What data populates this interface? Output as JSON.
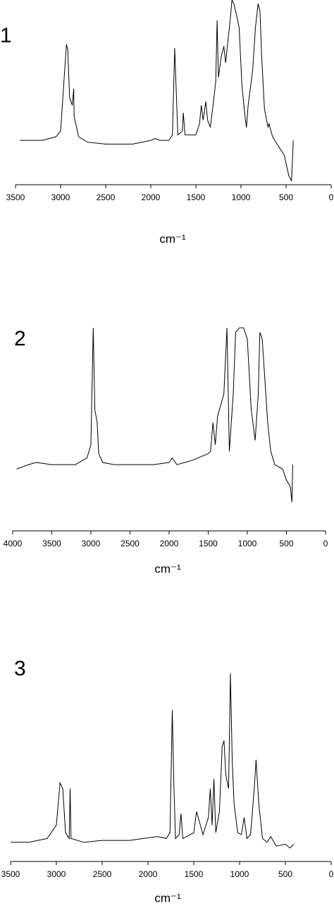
{
  "chart_data": [
    {
      "type": "line",
      "title": "1",
      "xlabel": "cm⁻¹",
      "color": "#000000",
      "xlim": [
        3500,
        0
      ],
      "xticks": [
        3500,
        3000,
        2500,
        2000,
        1500,
        1000,
        500,
        0
      ],
      "ylim": [
        0,
        100
      ],
      "x": [
        3450,
        3400,
        3200,
        3050,
        3000,
        2960,
        2935,
        2920,
        2900,
        2870,
        2855,
        2850,
        2800,
        2700,
        2500,
        2200,
        2000,
        1950,
        1900,
        1800,
        1760,
        1735,
        1720,
        1700,
        1650,
        1640,
        1620,
        1500,
        1460,
        1440,
        1420,
        1390,
        1370,
        1340,
        1300,
        1280,
        1265,
        1250,
        1220,
        1190,
        1170,
        1120,
        1100,
        1080,
        1050,
        1020,
        990,
        960,
        940,
        920,
        870,
        840,
        810,
        790,
        770,
        740,
        700,
        690,
        650,
        600,
        520,
        470,
        440,
        420
      ],
      "values": [
        24,
        24,
        24,
        26,
        29,
        58,
        76,
        73,
        47,
        43,
        52,
        37,
        26,
        23,
        22,
        22,
        24,
        25,
        24,
        24,
        27,
        74,
        54,
        27,
        29,
        39,
        27,
        27,
        33,
        43,
        35,
        45,
        35,
        31,
        47,
        56,
        89,
        58,
        69,
        75,
        66,
        89,
        100,
        98,
        92,
        85,
        54,
        39,
        31,
        43,
        62,
        85,
        98,
        94,
        69,
        41,
        31,
        33,
        26,
        22,
        16,
        5,
        2,
        24
      ]
    },
    {
      "type": "line",
      "title": "2",
      "xlabel": "cm⁻¹",
      "color": "#000000",
      "xlim": [
        4000,
        0
      ],
      "xticks": [
        4000,
        3500,
        3000,
        2500,
        2000,
        1500,
        1000,
        500,
        0
      ],
      "ylim": [
        0,
        100
      ],
      "x": [
        3950,
        3800,
        3700,
        3500,
        3200,
        3050,
        3000,
        2970,
        2950,
        2920,
        2900,
        2850,
        2700,
        2500,
        2200,
        2000,
        1960,
        1900,
        1800,
        1700,
        1500,
        1470,
        1440,
        1410,
        1380,
        1300,
        1260,
        1230,
        1180,
        1150,
        1100,
        1050,
        1000,
        950,
        900,
        860,
        840,
        810,
        780,
        740,
        700,
        650,
        550,
        500,
        450,
        430,
        420
      ],
      "values": [
        28,
        30,
        31,
        30,
        30,
        33,
        39,
        92,
        55,
        49,
        35,
        31,
        30,
        30,
        30,
        31,
        33,
        30,
        31,
        32,
        35,
        36,
        49,
        39,
        52,
        62,
        92,
        36,
        62,
        90,
        92,
        92,
        87,
        55,
        41,
        62,
        90,
        87,
        71,
        49,
        36,
        30,
        28,
        23,
        20,
        13,
        30
      ]
    },
    {
      "type": "line",
      "title": "3",
      "xlabel": "cm⁻¹",
      "color": "#000000",
      "xlim": [
        3500,
        0
      ],
      "xticks": [
        3500,
        3000,
        2500,
        2000,
        1500,
        1000,
        500,
        0
      ],
      "ylim": [
        0,
        100
      ],
      "x": [
        3500,
        3300,
        3100,
        3000,
        2960,
        2930,
        2900,
        2860,
        2850,
        2840,
        2700,
        2500,
        2200,
        1900,
        1800,
        1760,
        1735,
        1720,
        1700,
        1660,
        1640,
        1620,
        1500,
        1470,
        1440,
        1400,
        1340,
        1320,
        1300,
        1280,
        1260,
        1220,
        1190,
        1170,
        1150,
        1120,
        1100,
        1080,
        1060,
        1020,
        980,
        950,
        920,
        880,
        840,
        820,
        790,
        750,
        700,
        660,
        600,
        500,
        450,
        410
      ],
      "values": [
        10,
        10,
        12,
        19,
        41,
        38,
        15,
        12,
        38,
        12,
        10,
        11,
        11,
        13,
        12,
        15,
        79,
        45,
        12,
        14,
        25,
        12,
        15,
        26,
        21,
        14,
        23,
        38,
        19,
        43,
        15,
        26,
        60,
        63,
        45,
        38,
        98,
        52,
        30,
        15,
        14,
        23,
        12,
        14,
        38,
        53,
        30,
        12,
        10,
        13,
        8,
        9,
        7,
        9
      ]
    }
  ]
}
